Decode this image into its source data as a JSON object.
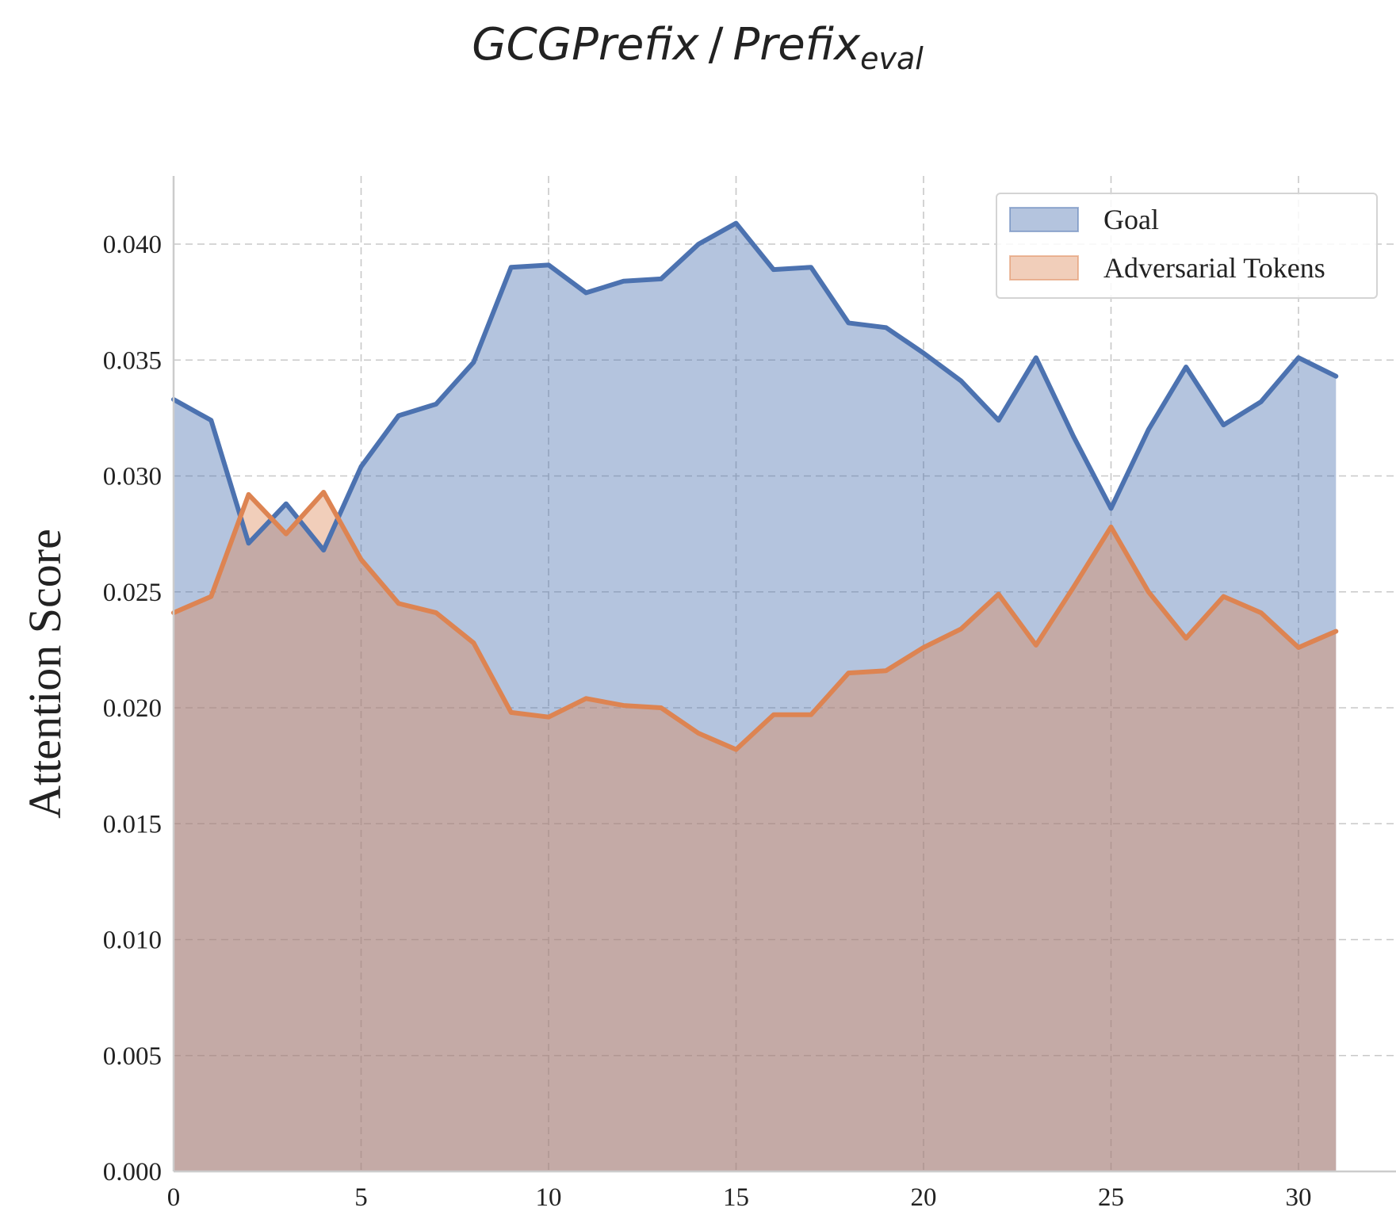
{
  "chart_data": {
    "type": "area",
    "title": {
      "main": "GCGPrefix",
      "separator": "/",
      "target": "Prefix",
      "target_subscript": "eval"
    },
    "xlabel": "",
    "ylabel": "Attention Score",
    "xlim": [
      0,
      32.5
    ],
    "ylim": [
      0,
      0.043
    ],
    "xticks": [
      0,
      5,
      10,
      15,
      20,
      25,
      30
    ],
    "xtick_labels": [
      "0",
      "5",
      "10",
      "15",
      "20",
      "25",
      "30"
    ],
    "yticks": [
      0,
      0.005,
      0.01,
      0.015,
      0.02,
      0.025,
      0.03,
      0.035,
      0.04
    ],
    "ytick_labels": [
      "0.000",
      "0.005",
      "0.010",
      "0.015",
      "0.020",
      "0.025",
      "0.030",
      "0.035",
      "0.040"
    ],
    "grid": true,
    "legend_position": "top-right",
    "x": [
      0,
      1,
      2,
      3,
      4,
      5,
      6,
      7,
      8,
      9,
      10,
      11,
      12,
      13,
      14,
      15,
      16,
      17,
      18,
      19,
      20,
      21,
      22,
      23,
      24,
      25,
      26,
      27,
      28,
      29,
      30,
      31
    ],
    "series": [
      {
        "name": "Goal",
        "color": "#4c72b0",
        "values": [
          0.0333,
          0.0324,
          0.0271,
          0.0288,
          0.0268,
          0.0304,
          0.0326,
          0.0331,
          0.0349,
          0.039,
          0.0391,
          0.0379,
          0.0384,
          0.0385,
          0.04,
          0.0409,
          0.0389,
          0.039,
          0.0366,
          0.0364,
          0.0353,
          0.0341,
          0.0324,
          0.0351,
          0.0317,
          0.0286,
          0.032,
          0.0347,
          0.0322,
          0.0332,
          0.0351,
          0.0343
        ]
      },
      {
        "name": "Adversarial Tokens",
        "color": "#dd8452",
        "values": [
          0.0241,
          0.0248,
          0.0292,
          0.0275,
          0.0293,
          0.0264,
          0.0245,
          0.0241,
          0.0228,
          0.0198,
          0.0196,
          0.0204,
          0.0201,
          0.02,
          0.0189,
          0.0182,
          0.0197,
          0.0197,
          0.0215,
          0.0216,
          0.0226,
          0.0234,
          0.0249,
          0.0227,
          0.0252,
          0.0278,
          0.025,
          0.023,
          0.0248,
          0.0241,
          0.0226,
          0.0233
        ]
      }
    ]
  }
}
